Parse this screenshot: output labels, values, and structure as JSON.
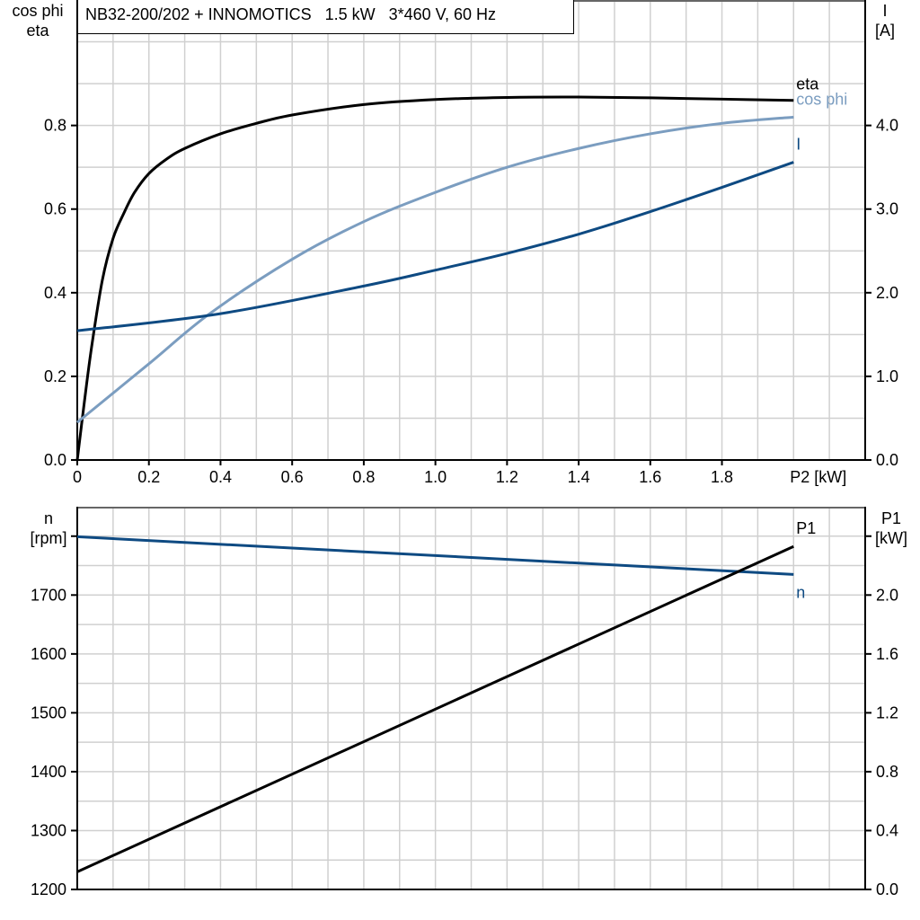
{
  "title": "NB32-200/202 + INNOMOTICS   1.5 kW   3*460 V, 60 Hz",
  "colors": {
    "eta": "#000000",
    "cos_phi": "#7b9dc0",
    "I": "#0e4a82",
    "n": "#0e4a82",
    "P1": "#000000",
    "grid": "#d0d0d0"
  },
  "chart_data": [
    {
      "type": "line",
      "xlabel": "P2 [kW]",
      "ylabel_left": [
        "cos phi",
        "eta"
      ],
      "ylabel_right": [
        "I",
        "[A]"
      ],
      "xlim": [
        0,
        2.2
      ],
      "ylim_left": [
        0,
        1.1
      ],
      "ylim_right": [
        0,
        5.5
      ],
      "xticks": [
        "0",
        "0.2",
        "0.4",
        "0.6",
        "0.8",
        "1.0",
        "1.2",
        "1.4",
        "1.6",
        "1.8"
      ],
      "yticks_left": [
        "0.0",
        "0.2",
        "0.4",
        "0.6",
        "0.8"
      ],
      "yticks_right": [
        "0.0",
        "1.0",
        "2.0",
        "3.0",
        "4.0"
      ],
      "grid": true,
      "series": [
        {
          "name": "eta",
          "axis": "left",
          "x": [
            0,
            0.02,
            0.04,
            0.07,
            0.1,
            0.13,
            0.16,
            0.2,
            0.25,
            0.3,
            0.4,
            0.5,
            0.6,
            0.8,
            1.0,
            1.2,
            1.4,
            1.6,
            1.8,
            2.0
          ],
          "y": [
            0,
            0.14,
            0.27,
            0.43,
            0.53,
            0.59,
            0.64,
            0.685,
            0.72,
            0.745,
            0.78,
            0.805,
            0.825,
            0.85,
            0.862,
            0.867,
            0.868,
            0.866,
            0.863,
            0.86
          ]
        },
        {
          "name": "cos phi",
          "axis": "left",
          "x": [
            0,
            0.2,
            0.37,
            0.6,
            0.8,
            1.0,
            1.2,
            1.4,
            1.6,
            1.8,
            2.0
          ],
          "y": [
            0.09,
            0.23,
            0.35,
            0.48,
            0.57,
            0.64,
            0.7,
            0.745,
            0.78,
            0.805,
            0.82
          ]
        },
        {
          "name": "I",
          "axis": "right",
          "x": [
            0,
            0.4,
            0.8,
            1.0,
            1.2,
            1.4,
            1.6,
            1.8,
            2.0
          ],
          "y": [
            1.545,
            1.75,
            2.08,
            2.27,
            2.47,
            2.7,
            2.97,
            3.26,
            3.56
          ]
        }
      ]
    },
    {
      "type": "line",
      "ylabel_left": [
        "n",
        "[rpm]"
      ],
      "ylabel_right": [
        "P1",
        "[kW]"
      ],
      "xlim": [
        0,
        2.2
      ],
      "ylim_left": [
        1200,
        1850
      ],
      "ylim_right": [
        0,
        2.6
      ],
      "yticks_left": [
        "1200",
        "1300",
        "1400",
        "1500",
        "1600",
        "1700"
      ],
      "yticks_right": [
        "0.0",
        "0.4",
        "0.8",
        "1.2",
        "1.6",
        "2.0"
      ],
      "grid": true,
      "series": [
        {
          "name": "n",
          "axis": "left",
          "x": [
            0,
            2.0
          ],
          "y": [
            1799,
            1735
          ]
        },
        {
          "name": "P1",
          "axis": "right",
          "x": [
            0,
            2.0
          ],
          "y": [
            0.12,
            2.33
          ]
        }
      ]
    }
  ]
}
